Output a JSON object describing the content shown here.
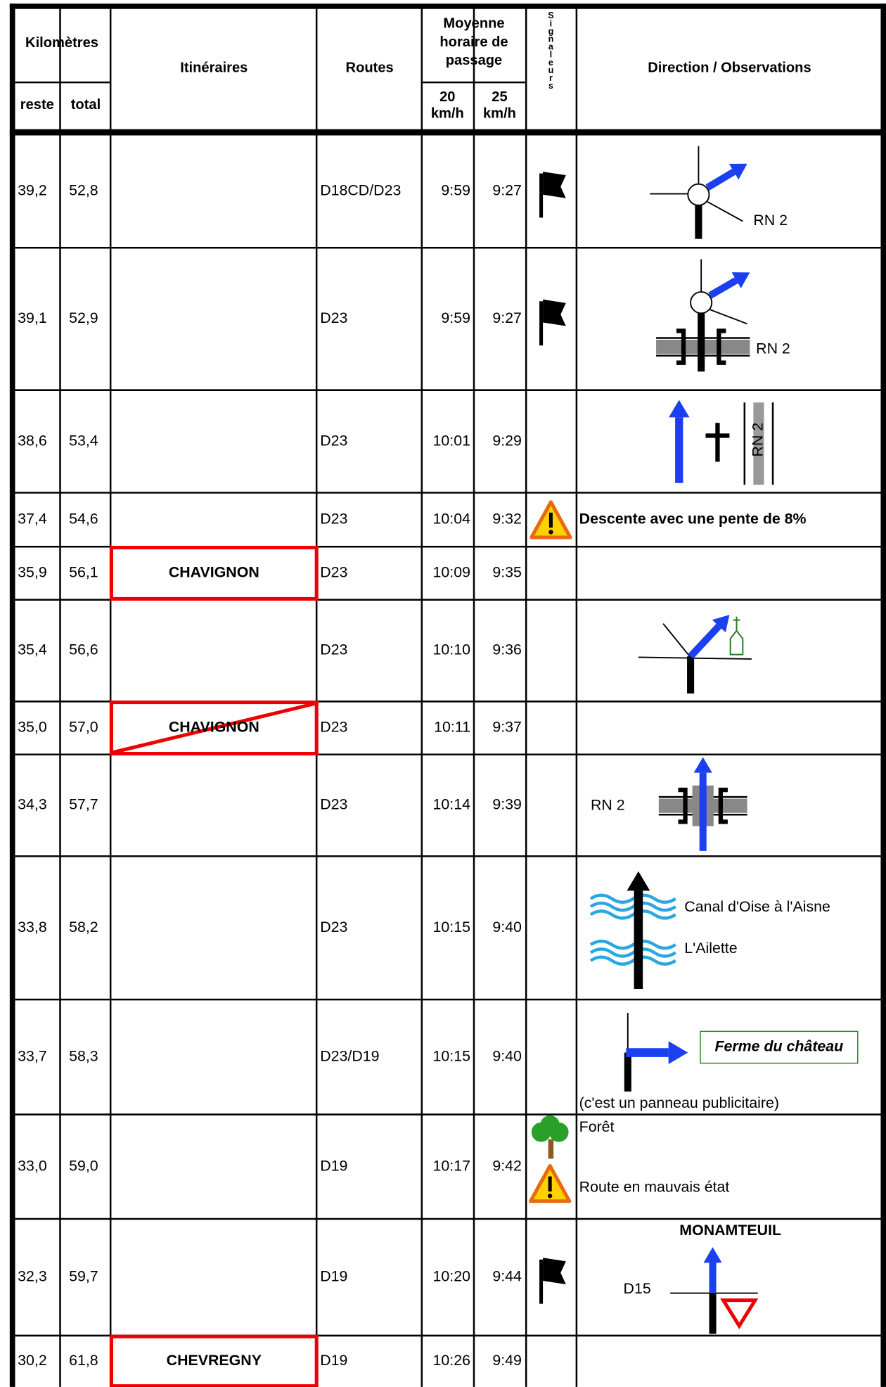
{
  "header": {
    "kilometres": "Kilomètres",
    "reste": "reste",
    "total": "total",
    "itineraires": "Itinéraires",
    "routes": "Routes",
    "moyenne": [
      "Moyenne",
      "horaire de",
      "passage"
    ],
    "speed20": [
      "20",
      "km/h"
    ],
    "speed25": [
      "25",
      "km/h"
    ],
    "signaleurs": "Signaleurs",
    "direction": "Direction / Observations"
  },
  "rows": [
    {
      "reste": "39,2",
      "total": "52,8",
      "route": "D18CD/D23",
      "t20": "9:59",
      "t25": "9:27",
      "notes": [
        "RN 2"
      ]
    },
    {
      "reste": "39,1",
      "total": "52,9",
      "route": "D23",
      "t20": "9:59",
      "t25": "9:27",
      "notes": [
        "RN 2"
      ]
    },
    {
      "reste": "38,6",
      "total": "53,4",
      "route": "D23",
      "t20": "10:01",
      "t25": "9:29",
      "notes": [
        "RN 2"
      ]
    },
    {
      "reste": "37,4",
      "total": "54,6",
      "route": "D23",
      "t20": "10:04",
      "t25": "9:32",
      "notes": [
        "Descente avec une pente de 8%"
      ]
    },
    {
      "reste": "35,9",
      "total": "56,1",
      "itineraire": "CHAVIGNON",
      "route": "D23",
      "t20": "10:09",
      "t25": "9:35"
    },
    {
      "reste": "35,4",
      "total": "56,6",
      "route": "D23",
      "t20": "10:10",
      "t25": "9:36"
    },
    {
      "reste": "35,0",
      "total": "57,0",
      "itineraire": "CHAVIGNON",
      "route": "D23",
      "t20": "10:11",
      "t25": "9:37"
    },
    {
      "reste": "34,3",
      "total": "57,7",
      "route": "D23",
      "t20": "10:14",
      "t25": "9:39",
      "notes": [
        "RN 2"
      ]
    },
    {
      "reste": "33,8",
      "total": "58,2",
      "route": "D23",
      "t20": "10:15",
      "t25": "9:40",
      "notes": [
        "Canal d'Oise à l'Aisne",
        "L'Ailette"
      ]
    },
    {
      "reste": "33,7",
      "total": "58,3",
      "route": "D23/D19",
      "t20": "10:15",
      "t25": "9:40",
      "notes": [
        "Ferme du château",
        "(c'est un panneau publicitaire)"
      ]
    },
    {
      "reste": "33,0",
      "total": "59,0",
      "route": "D19",
      "t20": "10:17",
      "t25": "9:42",
      "notes": [
        "Forêt",
        "Route en mauvais état"
      ]
    },
    {
      "reste": "32,3",
      "total": "59,7",
      "route": "D19",
      "t20": "10:20",
      "t25": "9:44",
      "notes": [
        "MONAMTEUIL",
        "D15"
      ]
    },
    {
      "reste": "30,2",
      "total": "61,8",
      "itineraire": "CHEVREGNY",
      "route": "D19",
      "t20": "10:26",
      "t25": "9:49"
    }
  ]
}
